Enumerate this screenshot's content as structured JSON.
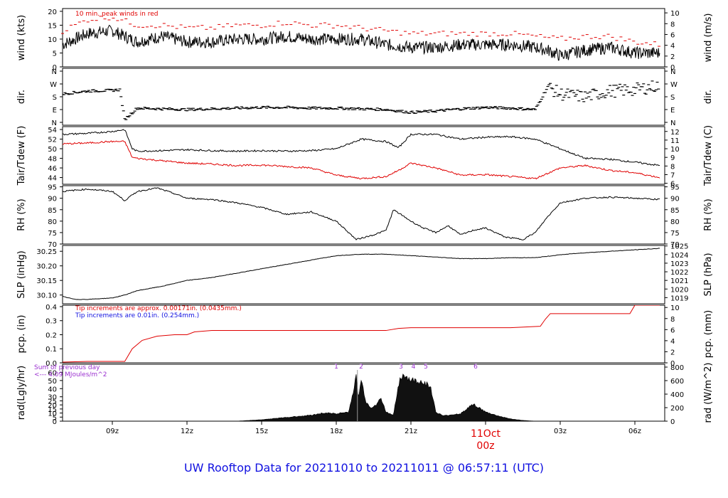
{
  "title": "UW Rooftop Data for 20211010  to  20211011 @ 06:57:11  (UTC)",
  "date_label": {
    "line1": "11Oct",
    "line2": "00z",
    "color": "#e00000"
  },
  "chart_data": [
    {
      "type": "line",
      "id": "wind",
      "ylabel_left": "wind (kts)",
      "ylabel_right": "wind (m/s)",
      "ylim": [
        0,
        21
      ],
      "left_ticks": [
        0,
        5,
        10,
        15,
        20
      ],
      "right_ticks": [
        0,
        2,
        4,
        6,
        8,
        10
      ],
      "annotation": {
        "text": "10 min. peak winds in red",
        "color": "#e00000"
      },
      "series": [
        {
          "color": "#000000",
          "x": [
            7,
            8,
            9,
            9.5,
            10,
            11,
            12,
            13,
            14,
            15,
            16,
            17,
            18,
            19,
            20,
            21,
            22,
            23,
            24,
            25,
            26,
            26.5,
            27,
            28,
            29,
            30,
            31
          ],
          "values": [
            8,
            12,
            13,
            11,
            9,
            11,
            9,
            9,
            10,
            10,
            11,
            10,
            10,
            10,
            8,
            7,
            7,
            8,
            8,
            8,
            7,
            6,
            4,
            6,
            7,
            5,
            5
          ]
        },
        {
          "color": "#e00000",
          "style": "dash",
          "x": [
            7,
            8,
            9,
            10,
            11,
            12,
            13,
            14,
            15,
            16,
            17,
            18,
            19,
            20,
            21,
            22,
            23,
            24,
            25,
            26,
            27,
            28,
            29,
            30,
            31
          ],
          "values": [
            13,
            17,
            18,
            15,
            15,
            14,
            14,
            15,
            15,
            16,
            15,
            15,
            14,
            13,
            12,
            12,
            12,
            12,
            12,
            11,
            10,
            11,
            11,
            9,
            8
          ]
        }
      ]
    },
    {
      "type": "scatter",
      "id": "dir",
      "ylabel_left": "dir.",
      "ylabel_right": "dir.",
      "left_ticks": [
        "N",
        "E",
        "S",
        "W",
        "N"
      ],
      "right_ticks": [
        "N",
        "E",
        "S",
        "W",
        "N"
      ],
      "ylim": [
        0,
        360
      ],
      "series": [
        {
          "color": "#000000",
          "x": [
            7,
            8,
            9,
            9.3,
            9.5,
            10,
            11,
            12,
            13,
            14,
            15,
            16,
            17,
            18,
            19,
            20,
            21,
            22,
            23,
            24,
            25,
            26,
            26.5,
            27,
            28,
            29,
            30,
            31
          ],
          "values": [
            200,
            220,
            225,
            230,
            20,
            100,
            95,
            90,
            95,
            100,
            105,
            105,
            100,
            100,
            95,
            90,
            70,
            80,
            95,
            105,
            100,
            90,
            250,
            200,
            180,
            220,
            230,
            260
          ]
        }
      ]
    },
    {
      "type": "line",
      "id": "temp",
      "ylabel_left": "Tair/Tdew (F)",
      "ylabel_right": "Tair/Tdew (C)",
      "ylim": [
        42.6,
        54.6
      ],
      "left_ticks": [
        44,
        46,
        48,
        50,
        52,
        54
      ],
      "right_ticks": [
        6,
        7,
        8,
        9,
        10,
        11,
        12
      ],
      "series": [
        {
          "color": "#000000",
          "x": [
            7,
            8,
            9,
            9.5,
            9.8,
            10,
            11,
            12,
            13,
            14,
            15,
            16,
            17,
            18,
            19,
            20,
            20.5,
            21,
            22,
            23,
            24,
            25,
            26,
            27,
            28,
            29,
            30,
            31
          ],
          "values": [
            53,
            53.2,
            53.6,
            54,
            50,
            49.5,
            49.6,
            49.8,
            49.6,
            49.5,
            49.6,
            49.5,
            49.6,
            50,
            52,
            51.5,
            50.2,
            53,
            53,
            52,
            52.4,
            52.5,
            52,
            50,
            48,
            47.8,
            47.2,
            46.5
          ]
        },
        {
          "color": "#e00000",
          "x": [
            7,
            8,
            9,
            9.5,
            9.8,
            10,
            11,
            12,
            13,
            14,
            15,
            16,
            17,
            18,
            19,
            20,
            20.5,
            21,
            22,
            23,
            24,
            25,
            26,
            27,
            28,
            29,
            30,
            31
          ],
          "values": [
            51,
            51.2,
            51.5,
            51.5,
            48.2,
            48,
            47.5,
            47,
            46.8,
            46.5,
            46.6,
            46.3,
            46,
            44.5,
            43.8,
            44.2,
            45.5,
            47,
            46,
            44.5,
            44.6,
            44.2,
            43.8,
            46,
            46.5,
            45.5,
            45,
            44
          ]
        }
      ]
    },
    {
      "type": "line",
      "id": "rh",
      "ylabel_left": "RH (%)",
      "ylabel_right": "RH (%)",
      "ylim": [
        70,
        95.5
      ],
      "left_ticks": [
        70,
        75,
        80,
        85,
        90,
        95
      ],
      "right_ticks": [
        70,
        75,
        80,
        85,
        90,
        95
      ],
      "series": [
        {
          "color": "#000000",
          "x": [
            7,
            8,
            9,
            9.5,
            10,
            10.8,
            11.5,
            12,
            13,
            14,
            15,
            16,
            17,
            18,
            18.8,
            19.5,
            20,
            20.3,
            21,
            21.5,
            22,
            22.5,
            23,
            23.5,
            24,
            24.8,
            25.5,
            26,
            26.5,
            27,
            28,
            29,
            30,
            31
          ],
          "values": [
            93,
            94,
            93,
            89,
            93,
            94.5,
            92,
            90,
            89.5,
            88,
            86,
            83,
            84,
            80,
            72,
            74,
            76,
            85,
            80,
            77,
            75,
            78,
            74,
            76,
            77,
            73,
            72,
            75,
            82,
            88,
            90,
            90.5,
            90,
            89.5
          ]
        }
      ]
    },
    {
      "type": "line",
      "id": "slp",
      "ylabel_left": "SLP (inHg)",
      "ylabel_right": "SLP (hPa)",
      "ylim": [
        30.07,
        30.27
      ],
      "left_ticks": [
        30.1,
        30.15,
        30.2,
        30.25
      ],
      "left_tick_labels": [
        "30.10",
        "30.15",
        "30.20",
        "30.25"
      ],
      "right_ticks": [
        1019,
        1020,
        1021,
        1022,
        1023,
        1024,
        1025
      ],
      "series": [
        {
          "color": "#000000",
          "x": [
            7,
            7.5,
            8,
            9,
            9.5,
            10,
            11,
            12,
            13,
            14,
            15,
            16,
            17,
            18,
            19,
            20,
            21,
            22,
            23,
            24,
            25,
            26,
            27,
            28,
            29,
            30,
            31
          ],
          "values": [
            30.095,
            30.085,
            30.085,
            30.09,
            30.1,
            30.115,
            30.13,
            30.15,
            30.16,
            30.175,
            30.19,
            30.205,
            30.22,
            30.235,
            30.24,
            30.24,
            30.235,
            30.23,
            30.225,
            30.225,
            30.228,
            30.228,
            30.238,
            30.245,
            30.25,
            30.255,
            30.26
          ]
        }
      ]
    },
    {
      "type": "line",
      "id": "pcp",
      "ylabel_left": "pcp. (in)",
      "ylabel_right": "pcp. (mm)",
      "ylim": [
        0,
        0.41
      ],
      "left_ticks": [
        0,
        0.1,
        0.2,
        0.3,
        0.4
      ],
      "left_tick_labels": [
        "0.0",
        "0.1",
        "0.2",
        "0.3",
        "0.4"
      ],
      "right_ticks": [
        0,
        2,
        4,
        6,
        8,
        10
      ],
      "annotation_lines": [
        {
          "text": "Tip increments are approx. 0.00171in. (0.0435mm.)",
          "color": "#e00000"
        },
        {
          "text": "Tip increments are 0.01in. (0.254mm.)",
          "color": "#1010e0"
        }
      ],
      "series": [
        {
          "color": "#e00000",
          "x": [
            7,
            8,
            9.5,
            9.8,
            10.2,
            10.8,
            11.5,
            12,
            12.3,
            13,
            14,
            18,
            19,
            20,
            20.5,
            21,
            24,
            25,
            26.2,
            26.4,
            26.6,
            27,
            29,
            29.8,
            30,
            31
          ],
          "values": [
            0.005,
            0.01,
            0.01,
            0.1,
            0.16,
            0.19,
            0.2,
            0.2,
            0.22,
            0.23,
            0.23,
            0.23,
            0.23,
            0.23,
            0.245,
            0.25,
            0.25,
            0.25,
            0.26,
            0.31,
            0.35,
            0.35,
            0.35,
            0.35,
            0.41,
            0.41
          ]
        }
      ]
    },
    {
      "type": "area",
      "id": "rad",
      "ylabel_left": "rad(Lgly/hr)",
      "ylabel_right": "rad (W/m^2)",
      "ylim": [
        0,
        70
      ],
      "left_ticks": [
        0,
        5,
        10,
        15,
        20,
        25,
        30,
        40,
        50,
        60
      ],
      "right_ticks": [
        0,
        200,
        400,
        600,
        800
      ],
      "right_max": 800,
      "annotation_lines": [
        {
          "text": "Sum of previous day",
          "color": "#9b30d0"
        },
        {
          "text": "<--- 4.09 MJoules/m^2",
          "color": "#9b30d0"
        }
      ],
      "markers": [
        {
          "label": "1",
          "x": 18.0
        },
        {
          "label": "2",
          "x": 19.0
        },
        {
          "label": "3",
          "x": 20.6
        },
        {
          "label": "4",
          "x": 21.1
        },
        {
          "label": "5",
          "x": 21.6
        },
        {
          "label": "6",
          "x": 23.6
        }
      ],
      "marker_color": "#9b30d0",
      "series": [
        {
          "color": "#000000",
          "x": [
            14,
            14.5,
            15,
            16,
            17,
            17.5,
            18,
            18.5,
            18.8,
            18.9,
            19.0,
            19.2,
            19.4,
            19.6,
            19.8,
            20.0,
            20.3,
            20.5,
            20.7,
            21,
            21.5,
            21.8,
            22.0,
            22.3,
            23,
            23.5,
            24,
            24.5,
            25,
            25.5,
            26
          ],
          "values": [
            0,
            1,
            2,
            5,
            8,
            11,
            10,
            12,
            58,
            30,
            55,
            25,
            18,
            22,
            30,
            12,
            8,
            50,
            62,
            54,
            52,
            44,
            12,
            7,
            10,
            23,
            12,
            7,
            3,
            1,
            0
          ]
        }
      ]
    }
  ],
  "x_axis": {
    "range": [
      7,
      31.2
    ],
    "ticks": [
      {
        "x": 9,
        "label": "09z"
      },
      {
        "x": 12,
        "label": "12z"
      },
      {
        "x": 15,
        "label": "15z"
      },
      {
        "x": 18,
        "label": "18z"
      },
      {
        "x": 21,
        "label": "21z"
      },
      {
        "x": 27,
        "label": "03z"
      },
      {
        "x": 30,
        "label": "06z"
      }
    ]
  }
}
